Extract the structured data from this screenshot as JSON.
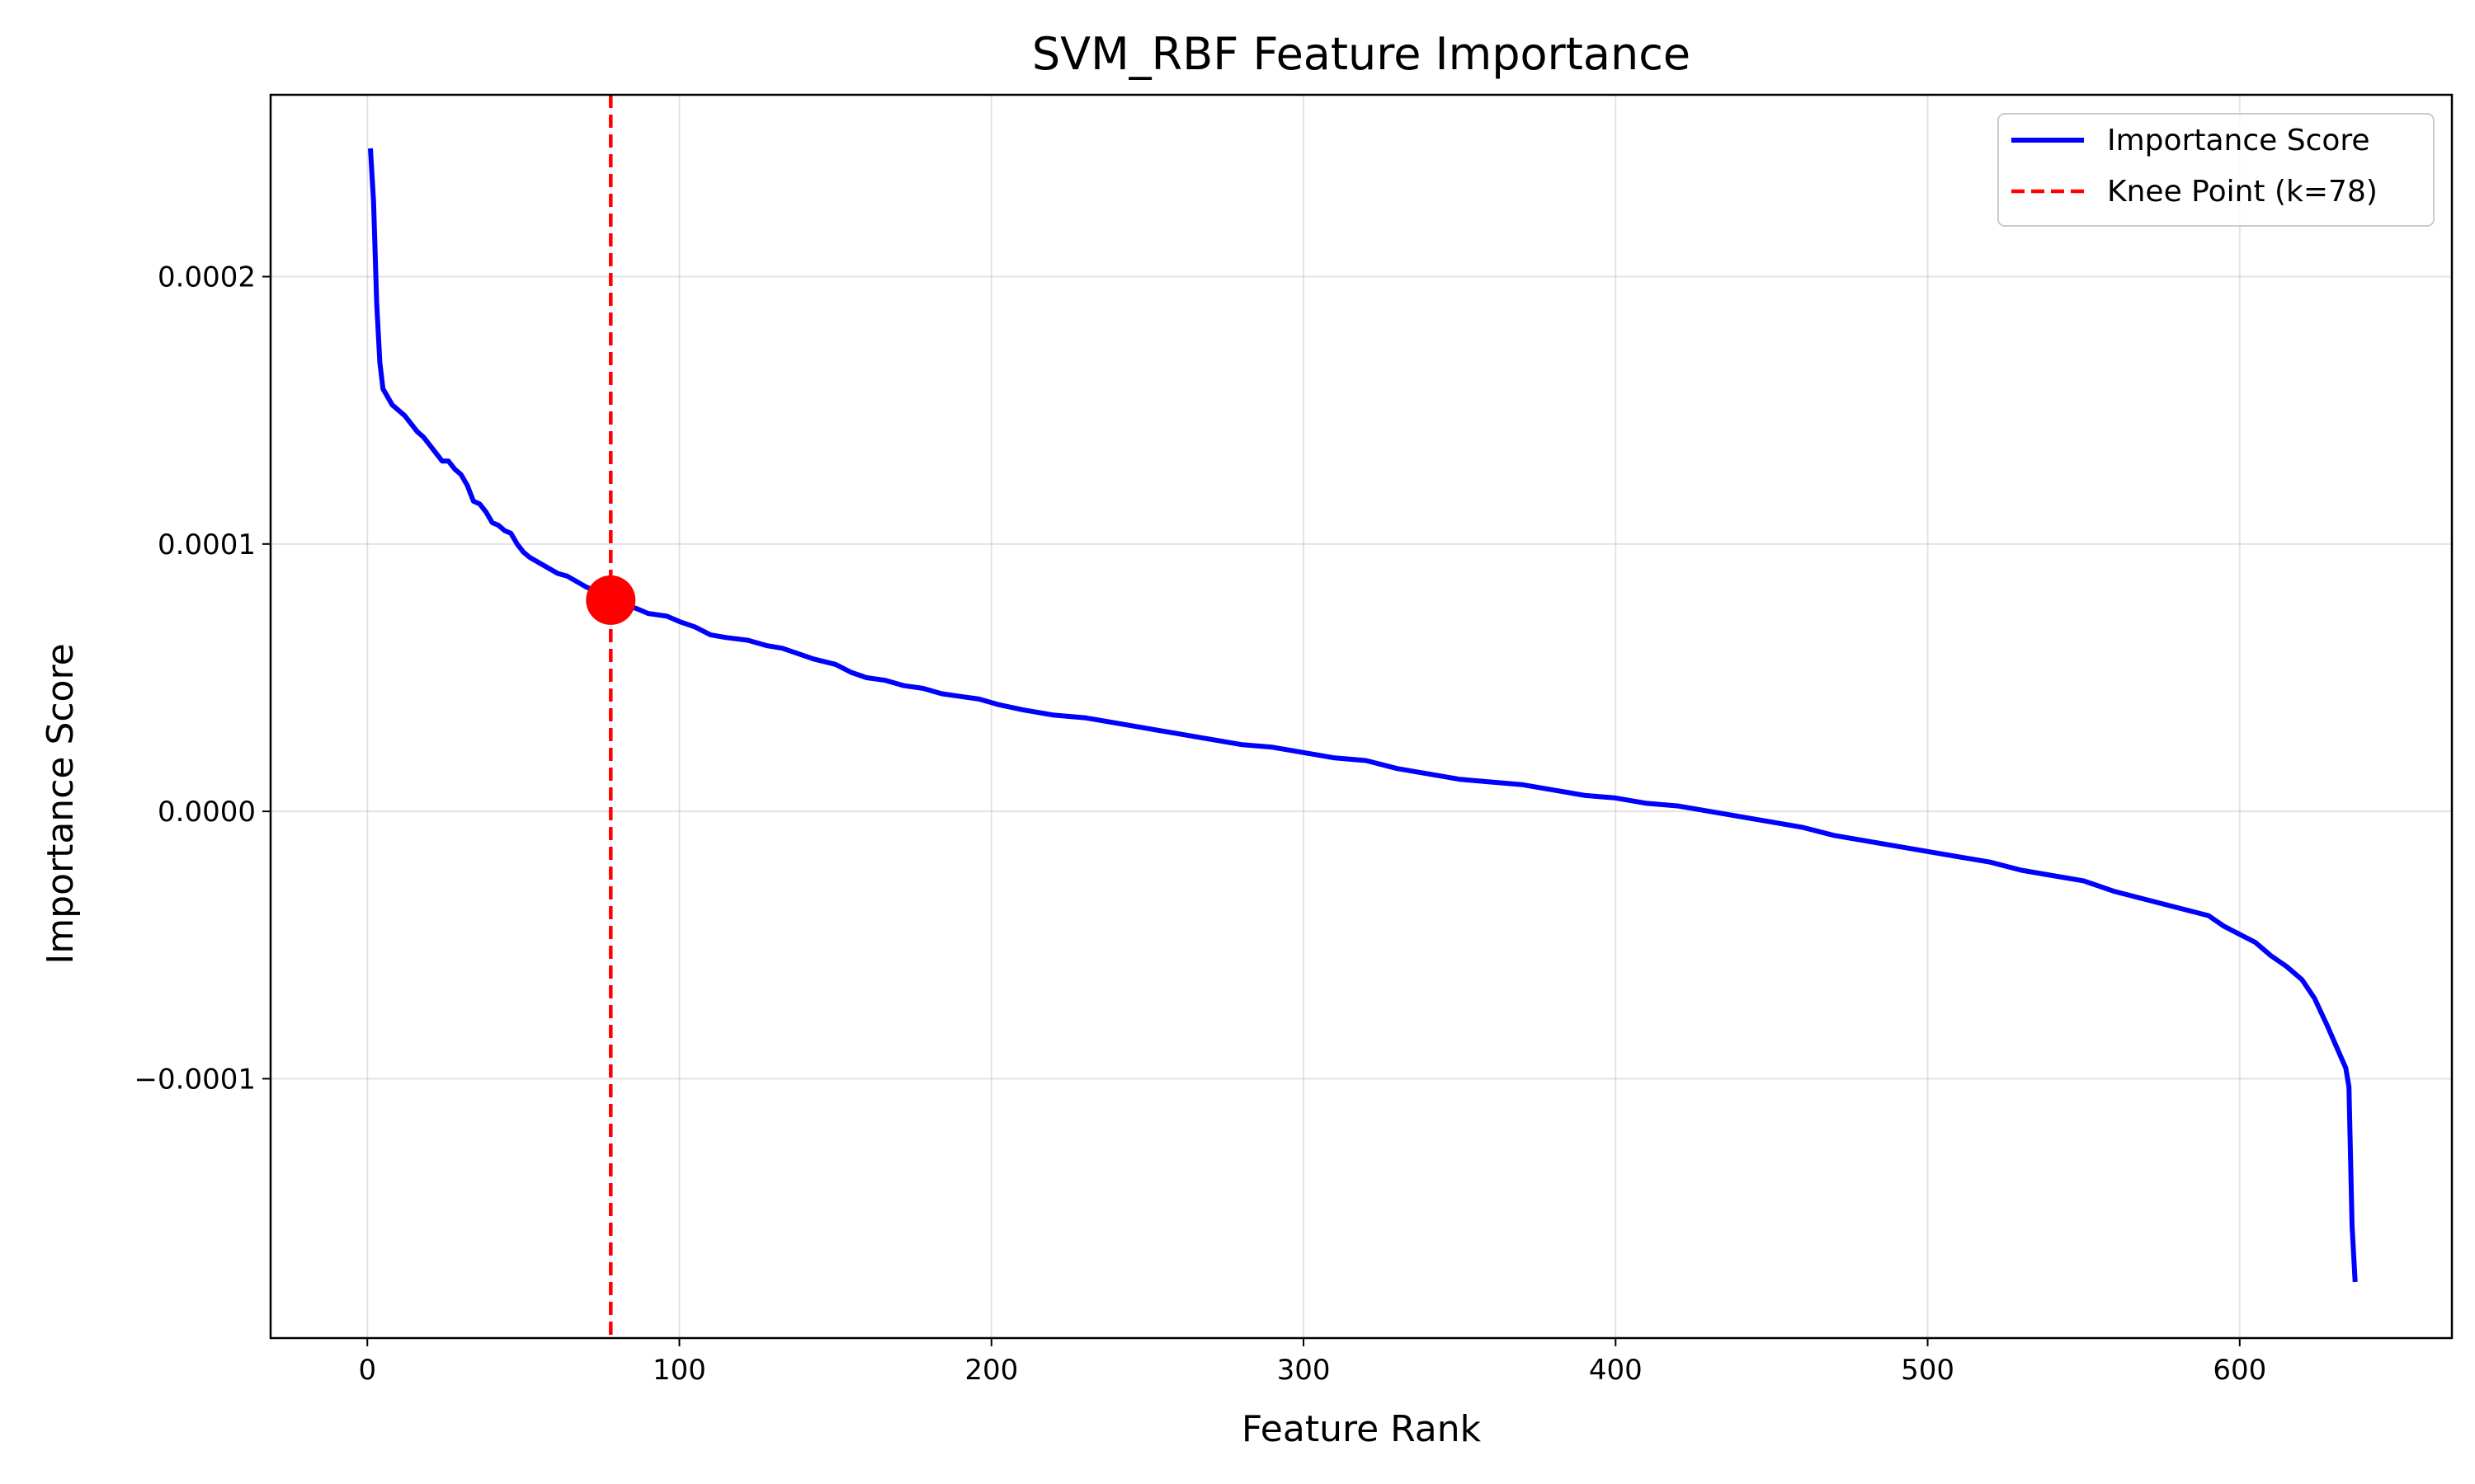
{
  "chart_data": {
    "type": "line",
    "title": "SVM_RBF Feature Importance",
    "xlabel": "Feature Rank",
    "ylabel": "Importance Score",
    "xlim": [
      -31,
      668
    ],
    "ylim": [
      -0.000197,
      0.000268
    ],
    "grid": true,
    "legend_position": "top-right",
    "x_ticks": [
      {
        "value": 0,
        "label": "0"
      },
      {
        "value": 100,
        "label": "100"
      },
      {
        "value": 200,
        "label": "200"
      },
      {
        "value": 300,
        "label": "300"
      },
      {
        "value": 400,
        "label": "400"
      },
      {
        "value": 500,
        "label": "500"
      },
      {
        "value": 600,
        "label": "600"
      }
    ],
    "y_ticks": [
      {
        "value": -0.0001,
        "label": "−0.0001"
      },
      {
        "value": 0.0,
        "label": "0.0000"
      },
      {
        "value": 0.0001,
        "label": "0.0001"
      },
      {
        "value": 0.0002,
        "label": "0.0002"
      }
    ],
    "series": [
      {
        "name": "Importance Score",
        "color": "#0000ff",
        "points": [
          [
            1,
            0.000248
          ],
          [
            2,
            0.000228
          ],
          [
            3,
            0.00019
          ],
          [
            4,
            0.000168
          ],
          [
            5,
            0.000158
          ],
          [
            6,
            0.000156
          ],
          [
            8,
            0.000152
          ],
          [
            10,
            0.00015
          ],
          [
            12,
            0.000148
          ],
          [
            14,
            0.000145
          ],
          [
            16,
            0.000142
          ],
          [
            18,
            0.00014
          ],
          [
            20,
            0.000137
          ],
          [
            22,
            0.000134
          ],
          [
            24,
            0.000131
          ],
          [
            26,
            0.000131
          ],
          [
            28,
            0.000128
          ],
          [
            30,
            0.000126
          ],
          [
            32,
            0.000122
          ],
          [
            34,
            0.000116
          ],
          [
            36,
            0.000115
          ],
          [
            38,
            0.000112
          ],
          [
            40,
            0.000108
          ],
          [
            42,
            0.000107
          ],
          [
            44,
            0.000105
          ],
          [
            46,
            0.000104
          ],
          [
            48,
            0.0001
          ],
          [
            50,
            9.7e-05
          ],
          [
            52,
            9.5e-05
          ],
          [
            55,
            9.3e-05
          ],
          [
            58,
            9.1e-05
          ],
          [
            61,
            8.9e-05
          ],
          [
            64,
            8.8e-05
          ],
          [
            67,
            8.6e-05
          ],
          [
            70,
            8.4e-05
          ],
          [
            74,
            8.2e-05
          ],
          [
            78,
            7.9e-05
          ],
          [
            82,
            7.7e-05
          ],
          [
            86,
            7.6e-05
          ],
          [
            90,
            7.4e-05
          ],
          [
            96,
            7.3e-05
          ],
          [
            100,
            7.1e-05
          ],
          [
            105,
            6.9e-05
          ],
          [
            110,
            6.6e-05
          ],
          [
            115,
            6.5e-05
          ],
          [
            122,
            6.4e-05
          ],
          [
            128,
            6.2e-05
          ],
          [
            133,
            6.1e-05
          ],
          [
            138,
            5.9e-05
          ],
          [
            143,
            5.7e-05
          ],
          [
            150,
            5.5e-05
          ],
          [
            155,
            5.2e-05
          ],
          [
            160,
            5e-05
          ],
          [
            166,
            4.9e-05
          ],
          [
            172,
            4.7e-05
          ],
          [
            178,
            4.6e-05
          ],
          [
            184,
            4.4e-05
          ],
          [
            190,
            4.3e-05
          ],
          [
            196,
            4.2e-05
          ],
          [
            202,
            4e-05
          ],
          [
            210,
            3.8e-05
          ],
          [
            220,
            3.6e-05
          ],
          [
            230,
            3.5e-05
          ],
          [
            240,
            3.3e-05
          ],
          [
            250,
            3.1e-05
          ],
          [
            260,
            2.9e-05
          ],
          [
            270,
            2.7e-05
          ],
          [
            280,
            2.5e-05
          ],
          [
            290,
            2.4e-05
          ],
          [
            300,
            2.2e-05
          ],
          [
            310,
            2e-05
          ],
          [
            320,
            1.9e-05
          ],
          [
            330,
            1.6e-05
          ],
          [
            340,
            1.4e-05
          ],
          [
            350,
            1.2e-05
          ],
          [
            360,
            1.1e-05
          ],
          [
            370,
            1e-05
          ],
          [
            380,
            8e-06
          ],
          [
            390,
            6e-06
          ],
          [
            400,
            5e-06
          ],
          [
            410,
            3e-06
          ],
          [
            420,
            2e-06
          ],
          [
            430,
            0.0
          ],
          [
            440,
            -2e-06
          ],
          [
            450,
            -4e-06
          ],
          [
            460,
            -6e-06
          ],
          [
            470,
            -9e-06
          ],
          [
            480,
            -1.1e-05
          ],
          [
            490,
            -1.3e-05
          ],
          [
            500,
            -1.5e-05
          ],
          [
            510,
            -1.7e-05
          ],
          [
            520,
            -1.9e-05
          ],
          [
            530,
            -2.2e-05
          ],
          [
            540,
            -2.4e-05
          ],
          [
            550,
            -2.6e-05
          ],
          [
            560,
            -3e-05
          ],
          [
            570,
            -3.3e-05
          ],
          [
            580,
            -3.6e-05
          ],
          [
            590,
            -3.9e-05
          ],
          [
            595,
            -4.3e-05
          ],
          [
            600,
            -4.6e-05
          ],
          [
            605,
            -4.9e-05
          ],
          [
            610,
            -5.4e-05
          ],
          [
            615,
            -5.8e-05
          ],
          [
            620,
            -6.3e-05
          ],
          [
            624,
            -7e-05
          ],
          [
            628,
            -8e-05
          ],
          [
            631,
            -8.8e-05
          ],
          [
            634,
            -9.6e-05
          ],
          [
            635,
            -0.000103
          ],
          [
            636,
            -0.000155
          ],
          [
            637,
            -0.000176
          ]
        ]
      }
    ],
    "knee": {
      "name": "Knee Point (k=78)",
      "x": 78,
      "y": 7.9e-05,
      "line_color": "#ff0000",
      "marker_color": "#ff0000"
    }
  }
}
